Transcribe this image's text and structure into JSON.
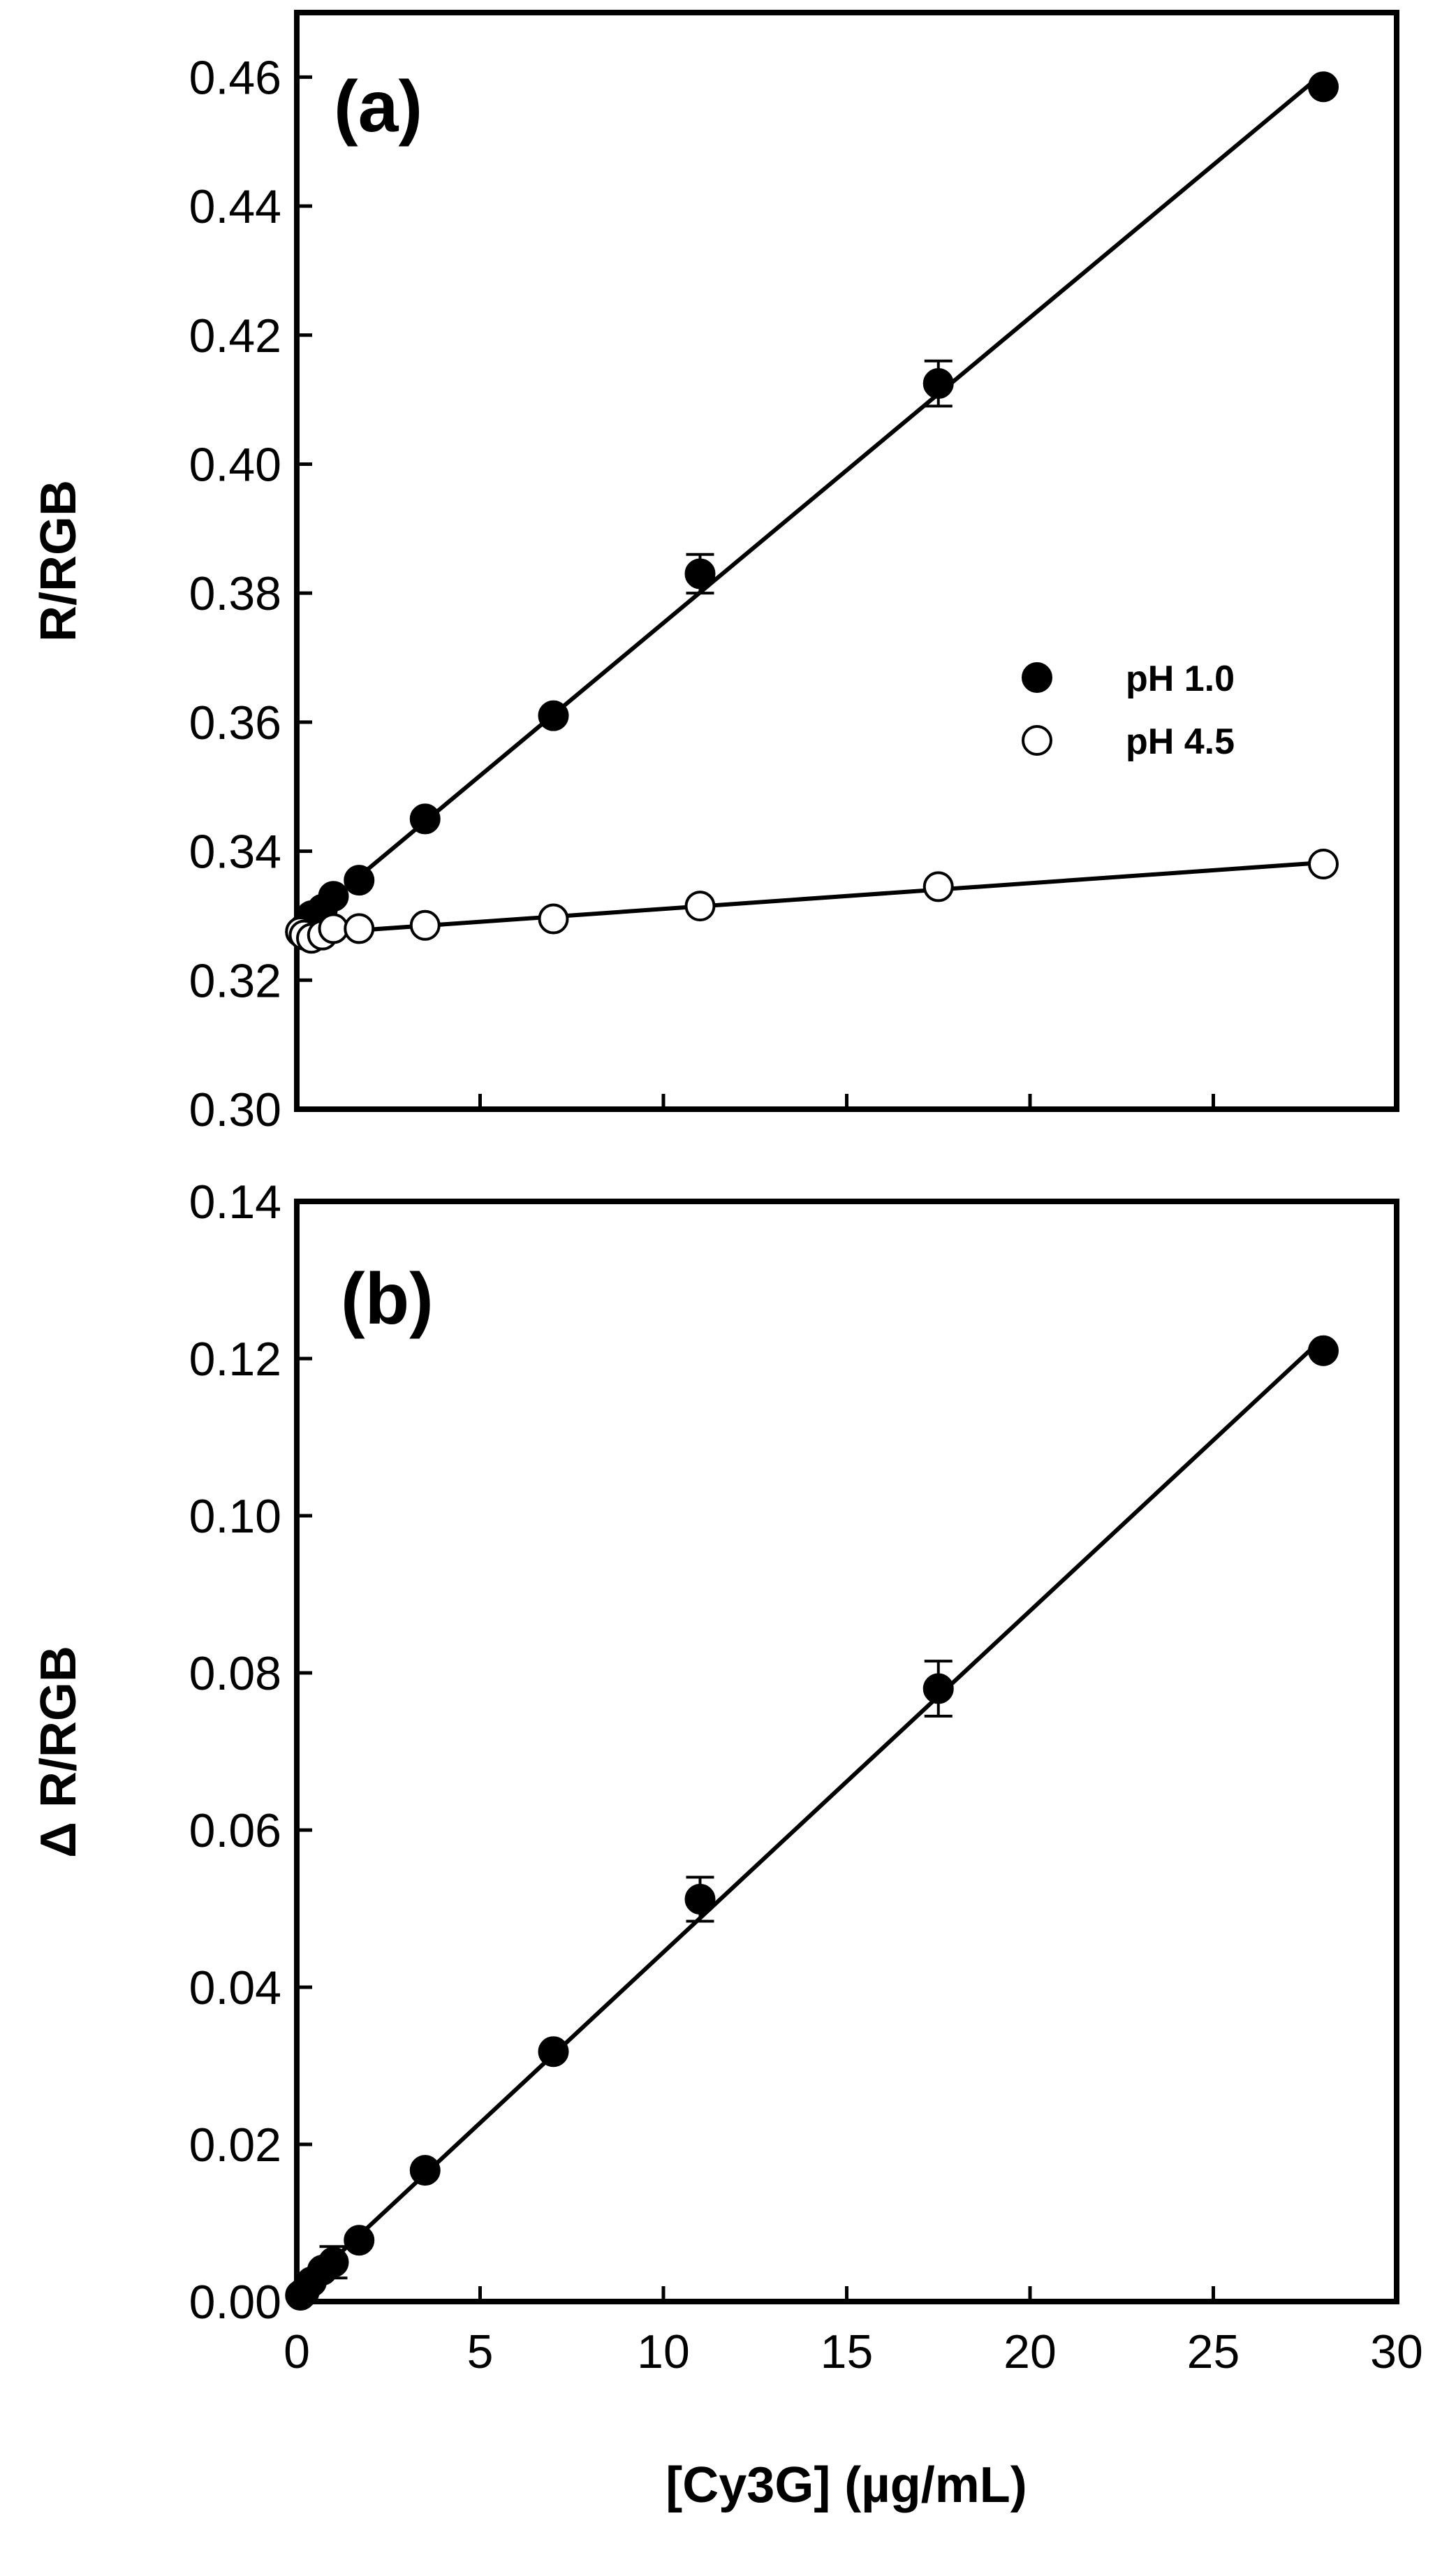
{
  "chart_data": [
    {
      "type": "scatter",
      "panel_label": "(a)",
      "xlabel": "[Cy3G] (µg/mL)",
      "ylabel": "R/RGB",
      "xlim": [
        0,
        30
      ],
      "ylim": [
        0.3,
        0.47
      ],
      "yticks": [
        "0.30",
        "0.32",
        "0.34",
        "0.36",
        "0.38",
        "0.40",
        "0.42",
        "0.44",
        "0.46"
      ],
      "legend_position": "right-middle",
      "series": [
        {
          "name": "pH 1.0",
          "marker": "filled-circle",
          "color": "#000000",
          "x": [
            0.1,
            0.2,
            0.4,
            0.7,
            1.0,
            1.7,
            3.5,
            7.0,
            11.0,
            17.5,
            28.0
          ],
          "y": [
            0.3275,
            0.328,
            0.33,
            0.331,
            0.333,
            0.3355,
            0.345,
            0.361,
            0.383,
            0.4125,
            0.4585
          ],
          "err": [
            0.0005,
            0.0008,
            0.0008,
            0.001,
            0.001,
            0.001,
            0.0012,
            0.0012,
            0.003,
            0.0035,
            0.0008
          ],
          "fit": [
            0,
            28.0
          ]
        },
        {
          "name": "pH 4.5",
          "marker": "open-circle",
          "color": "#000000",
          "x": [
            0.1,
            0.2,
            0.4,
            0.7,
            1.0,
            1.7,
            3.5,
            7.0,
            11.0,
            17.5,
            28.0
          ],
          "y": [
            0.3275,
            0.327,
            0.3265,
            0.327,
            0.328,
            0.328,
            0.3285,
            0.3295,
            0.3315,
            0.3345,
            0.338
          ],
          "err": [
            0.0005,
            0.0005,
            0.0005,
            0.0005,
            0.0005,
            0.0005,
            0.0005,
            0.0005,
            0.0005,
            0.0005,
            0.0005
          ],
          "fit": [
            0,
            28.0
          ]
        }
      ]
    },
    {
      "type": "scatter",
      "panel_label": "(b)",
      "xlabel": "[Cy3G] (µg/mL)",
      "ylabel": "Δ R/RGB",
      "xlim": [
        0,
        30
      ],
      "ylim": [
        0,
        0.14
      ],
      "xticks": [
        "0",
        "5",
        "10",
        "15",
        "20",
        "25",
        "30"
      ],
      "yticks": [
        "0.00",
        "0.02",
        "0.04",
        "0.06",
        "0.08",
        "0.10",
        "0.12",
        "0.14"
      ],
      "series": [
        {
          "name": "ΔR/RGB",
          "marker": "filled-circle",
          "color": "#000000",
          "x": [
            0.1,
            0.2,
            0.4,
            0.7,
            1.0,
            1.7,
            3.5,
            7.0,
            11.0,
            17.5,
            28.0
          ],
          "y": [
            0.0008,
            0.0012,
            0.0025,
            0.004,
            0.005,
            0.0078,
            0.0167,
            0.0318,
            0.0512,
            0.078,
            0.121
          ],
          "err": [
            0.0005,
            0.0008,
            0.001,
            0.0015,
            0.002,
            0.0015,
            0.001,
            0.0015,
            0.0028,
            0.0035,
            0.0012
          ],
          "fit": [
            0,
            28.0
          ]
        }
      ]
    }
  ]
}
